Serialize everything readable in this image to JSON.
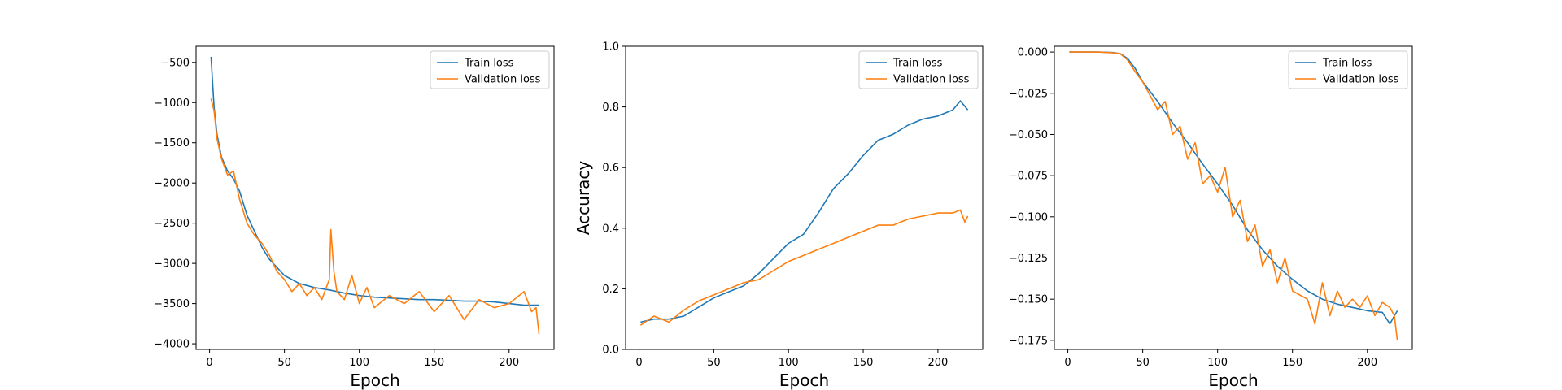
{
  "figure": {
    "colors": {
      "train": "#1f77b4",
      "validation": "#ff7f0e"
    }
  },
  "chart_data": [
    {
      "type": "line",
      "title": "",
      "xlabel": "Epoch",
      "ylabel": "",
      "xlim": [
        -9,
        230
      ],
      "ylim": [
        -4070,
        -300
      ],
      "xticks": [
        0,
        50,
        100,
        150,
        200
      ],
      "yticks": [
        -4000,
        -3500,
        -3000,
        -2500,
        -2000,
        -1500,
        -1000,
        -500
      ],
      "grid": false,
      "legend_position": "upper right",
      "series": [
        {
          "name": "Train loss",
          "color": "#1f77b4",
          "x": [
            1,
            3,
            5,
            8,
            12,
            16,
            20,
            25,
            30,
            35,
            40,
            45,
            50,
            60,
            70,
            80,
            90,
            100,
            110,
            120,
            130,
            140,
            150,
            160,
            170,
            180,
            190,
            200,
            210,
            220
          ],
          "y": [
            -430,
            -1050,
            -1400,
            -1680,
            -1850,
            -1950,
            -2100,
            -2400,
            -2600,
            -2800,
            -2950,
            -3050,
            -3150,
            -3250,
            -3300,
            -3330,
            -3370,
            -3400,
            -3420,
            -3430,
            -3440,
            -3450,
            -3450,
            -3460,
            -3470,
            -3470,
            -3480,
            -3500,
            -3520,
            -3520
          ]
        },
        {
          "name": "Validation loss",
          "color": "#ff7f0e",
          "x": [
            1,
            3,
            5,
            8,
            12,
            16,
            20,
            25,
            30,
            35,
            40,
            45,
            50,
            55,
            60,
            65,
            70,
            75,
            80,
            81,
            83,
            85,
            90,
            95,
            100,
            105,
            110,
            120,
            130,
            140,
            150,
            160,
            170,
            180,
            190,
            200,
            210,
            215,
            218,
            220
          ],
          "y": [
            -950,
            -1100,
            -1450,
            -1700,
            -1900,
            -1850,
            -2200,
            -2500,
            -2650,
            -2750,
            -2900,
            -3100,
            -3200,
            -3350,
            -3250,
            -3400,
            -3300,
            -3450,
            -3200,
            -2580,
            -3100,
            -3350,
            -3450,
            -3150,
            -3500,
            -3300,
            -3550,
            -3400,
            -3500,
            -3350,
            -3600,
            -3400,
            -3700,
            -3450,
            -3550,
            -3500,
            -3350,
            -3600,
            -3550,
            -3880
          ]
        }
      ]
    },
    {
      "type": "line",
      "title": "",
      "xlabel": "Epoch",
      "ylabel": "Accuracy",
      "xlim": [
        -9,
        230
      ],
      "ylim": [
        0.0,
        1.0
      ],
      "xticks": [
        0,
        50,
        100,
        150,
        200
      ],
      "yticks": [
        0.0,
        0.2,
        0.4,
        0.6,
        0.8,
        1.0
      ],
      "grid": false,
      "legend_position": "upper right",
      "series": [
        {
          "name": "Train loss",
          "color": "#1f77b4",
          "x": [
            1,
            10,
            20,
            30,
            40,
            50,
            60,
            70,
            80,
            90,
            100,
            110,
            120,
            130,
            140,
            150,
            160,
            170,
            180,
            190,
            200,
            210,
            215,
            220
          ],
          "y": [
            0.09,
            0.1,
            0.1,
            0.11,
            0.14,
            0.17,
            0.19,
            0.21,
            0.25,
            0.3,
            0.35,
            0.38,
            0.45,
            0.53,
            0.58,
            0.64,
            0.69,
            0.71,
            0.74,
            0.76,
            0.77,
            0.79,
            0.82,
            0.79
          ]
        },
        {
          "name": "Validation loss",
          "color": "#ff7f0e",
          "x": [
            1,
            10,
            20,
            30,
            40,
            50,
            60,
            70,
            80,
            90,
            100,
            110,
            120,
            130,
            140,
            150,
            160,
            170,
            180,
            190,
            200,
            210,
            215,
            218,
            220
          ],
          "y": [
            0.08,
            0.11,
            0.09,
            0.13,
            0.16,
            0.18,
            0.2,
            0.22,
            0.23,
            0.26,
            0.29,
            0.31,
            0.33,
            0.35,
            0.37,
            0.39,
            0.41,
            0.41,
            0.43,
            0.44,
            0.45,
            0.45,
            0.46,
            0.42,
            0.44
          ]
        }
      ]
    },
    {
      "type": "line",
      "title": "",
      "xlabel": "Epoch",
      "ylabel": "",
      "xlim": [
        -9,
        230
      ],
      "ylim": [
        -0.1805,
        0.0035
      ],
      "xticks": [
        0,
        50,
        100,
        150,
        200
      ],
      "yticks": [
        0.0,
        -0.025,
        -0.05,
        -0.075,
        -0.1,
        -0.125,
        -0.15,
        -0.175
      ],
      "ytick_labels": [
        "0.000",
        "−0.025",
        "−0.050",
        "−0.075",
        "−0.100",
        "−0.125",
        "−0.150",
        "−0.175"
      ],
      "grid": false,
      "legend_position": "upper right",
      "series": [
        {
          "name": "Train loss",
          "color": "#1f77b4",
          "x": [
            1,
            10,
            20,
            30,
            35,
            40,
            45,
            50,
            60,
            70,
            80,
            90,
            100,
            110,
            120,
            130,
            140,
            150,
            160,
            170,
            180,
            190,
            200,
            210,
            215,
            220
          ],
          "y": [
            0.0,
            0.0,
            0.0,
            -0.0003,
            -0.001,
            -0.004,
            -0.01,
            -0.018,
            -0.03,
            -0.043,
            -0.055,
            -0.068,
            -0.08,
            -0.093,
            -0.108,
            -0.12,
            -0.13,
            -0.138,
            -0.145,
            -0.15,
            -0.153,
            -0.155,
            -0.157,
            -0.158,
            -0.165,
            -0.157
          ]
        },
        {
          "name": "Validation loss",
          "color": "#ff7f0e",
          "x": [
            1,
            10,
            20,
            30,
            35,
            40,
            45,
            50,
            60,
            65,
            70,
            75,
            80,
            85,
            90,
            95,
            100,
            105,
            110,
            115,
            120,
            125,
            130,
            135,
            140,
            145,
            150,
            160,
            165,
            170,
            175,
            180,
            185,
            190,
            195,
            200,
            205,
            210,
            215,
            218,
            220
          ],
          "y": [
            0.0,
            0.0,
            0.0,
            -0.0005,
            -0.001,
            -0.005,
            -0.012,
            -0.018,
            -0.035,
            -0.03,
            -0.05,
            -0.045,
            -0.065,
            -0.055,
            -0.08,
            -0.075,
            -0.085,
            -0.07,
            -0.1,
            -0.09,
            -0.115,
            -0.105,
            -0.13,
            -0.12,
            -0.14,
            -0.125,
            -0.145,
            -0.15,
            -0.165,
            -0.14,
            -0.16,
            -0.145,
            -0.155,
            -0.15,
            -0.155,
            -0.148,
            -0.16,
            -0.152,
            -0.155,
            -0.16,
            -0.175
          ]
        }
      ]
    }
  ]
}
